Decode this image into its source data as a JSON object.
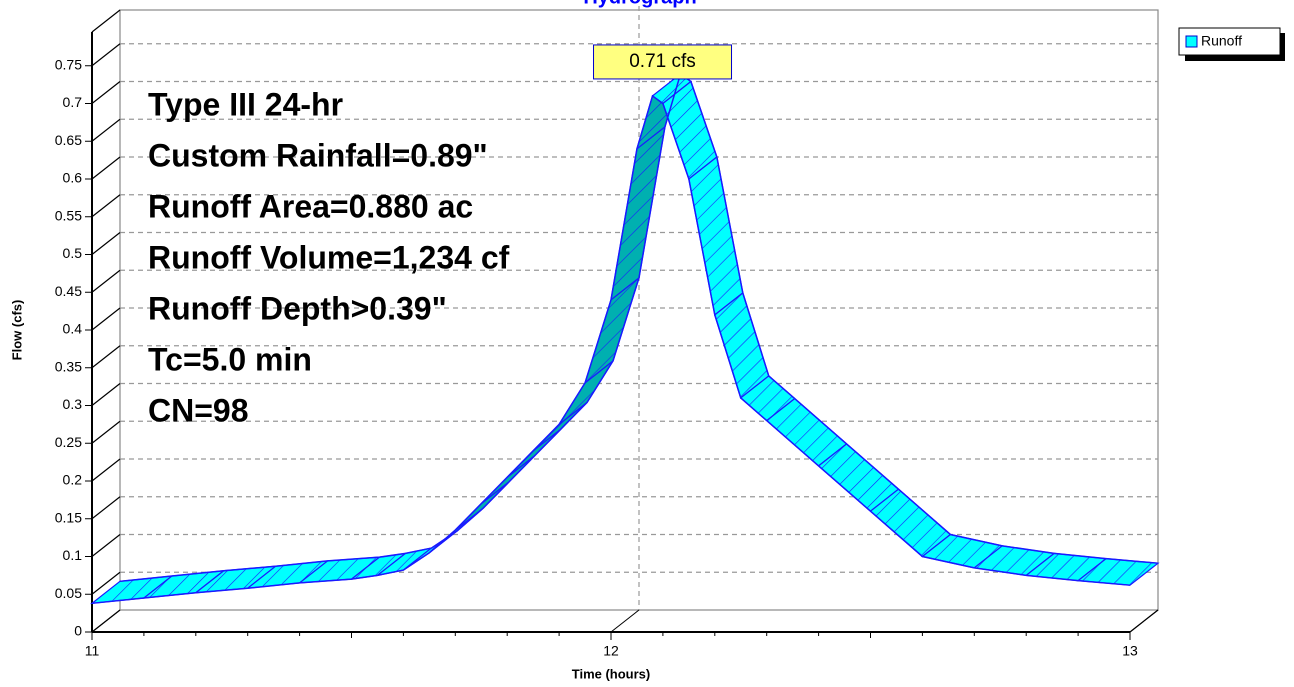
{
  "chart_data": {
    "type": "ribbon",
    "title": "Hydrograph",
    "x_label": "Time  (hours)",
    "y_label": "Flow  (cfs)",
    "annotations": [
      "Type III 24-hr",
      "Custom Rainfall=0.89\"",
      "Runoff Area=0.880 ac",
      "Runoff Volume=1,234 cf",
      "Runoff Depth>0.39\"",
      "Tc=5.0 min",
      "CN=98"
    ],
    "peak_label": "0.71 cfs",
    "x": [
      11.0,
      11.1,
      11.2,
      11.3,
      11.4,
      11.5,
      11.55,
      11.6,
      11.65,
      11.7,
      11.75,
      11.8,
      11.85,
      11.9,
      11.95,
      12.0,
      12.05,
      12.08,
      12.1,
      12.15,
      12.2,
      12.25,
      12.3,
      12.4,
      12.5,
      12.6,
      12.7,
      12.8,
      12.9,
      13.0
    ],
    "series": [
      {
        "name": "Runoff",
        "color": "#00ffff",
        "values": [
          0.038,
          0.045,
          0.052,
          0.058,
          0.065,
          0.07,
          0.075,
          0.082,
          0.105,
          0.135,
          0.17,
          0.205,
          0.24,
          0.275,
          0.33,
          0.44,
          0.64,
          0.71,
          0.7,
          0.6,
          0.42,
          0.31,
          0.28,
          0.22,
          0.16,
          0.1,
          0.085,
          0.075,
          0.068,
          0.062
        ]
      }
    ],
    "xlim": [
      11,
      13
    ],
    "xticks": [
      11,
      12,
      13
    ],
    "ylim": [
      0,
      0.8
    ],
    "yticks": [
      0,
      0.05,
      0.1,
      0.15,
      0.2,
      0.25,
      0.3,
      0.35,
      0.4,
      0.45,
      0.5,
      0.55,
      0.6,
      0.65,
      0.7,
      0.75
    ],
    "grid": true
  }
}
